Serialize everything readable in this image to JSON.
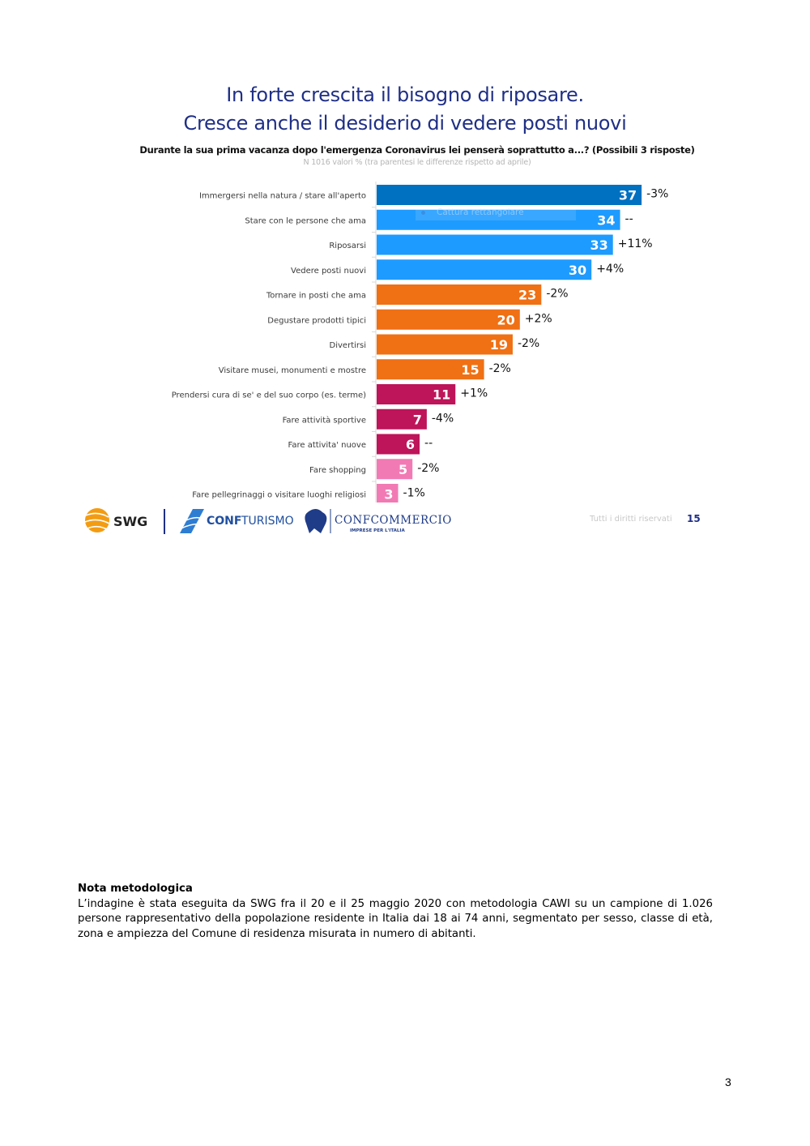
{
  "slide": {
    "title_line1": "In forte crescita il bisogno di riposare.",
    "title_line2": "Cresce anche il desiderio di vedere posti nuovi",
    "rights": "Tutti i diritti riservati",
    "slide_number": "15",
    "overlay_text": "Cattura rettangolare",
    "logos": {
      "swg": "SWG",
      "confturismo_bold": "CONF",
      "confturismo_light": "TURISMO",
      "confcommercio": "CONFCOMMERCIO",
      "confcommercio_sub": "IMPRESE PER L'ITALIA"
    }
  },
  "chart_data": {
    "type": "bar",
    "orientation": "horizontal",
    "title": "Durante la sua prima vacanza dopo l'emergenza Coronavirus lei penserà soprattutto a...? (Possibili 3 risposte)",
    "subtitle": "N   1016 valori % (tra parentesi le differenze rispetto ad aprile)",
    "xlabel": "",
    "ylabel": "",
    "xlim": [
      0,
      40
    ],
    "grid": false,
    "categories": [
      "Immergersi nella natura / stare all'aperto",
      "Stare con le persone che ama",
      "Riposarsi",
      "Vedere posti nuovi",
      "Tornare in posti che ama",
      "Degustare prodotti tipici",
      "Divertirsi",
      "Visitare musei, monumenti e mostre",
      "Prendersi cura di se' e del suo corpo (es. terme)",
      "Fare attività sportive",
      "Fare attivita' nuove",
      "Fare shopping",
      "Fare pellegrinaggi o visitare luoghi religiosi"
    ],
    "values": [
      37,
      34,
      33,
      30,
      23,
      20,
      19,
      15,
      11,
      7,
      6,
      5,
      3
    ],
    "value_labels": [
      "37",
      "34",
      "33",
      "30",
      "23",
      "20",
      "19",
      "15",
      "11",
      "7",
      "6",
      "5",
      "3"
    ],
    "diff_labels": [
      "-3%",
      "--",
      "+11%",
      "+4%",
      "-2%",
      "+2%",
      "-2%",
      "-2%",
      "+1%",
      "-4%",
      "--",
      "-2%",
      "-1%"
    ],
    "colors": [
      "#0070c0",
      "#1e9bff",
      "#1e9bff",
      "#1e9bff",
      "#f07014",
      "#f07014",
      "#f07014",
      "#f07014",
      "#be1459",
      "#be1459",
      "#be1459",
      "#f27ab4",
      "#f27ab4"
    ]
  },
  "methodology": {
    "heading": "Nota metodologica",
    "body": "L’indagine è stata eseguita da SWG fra il 20 e il 25 maggio 2020 con metodologia CAWI su un campione di 1.026 persone rappresentativo della popolazione residente in Italia dai 18 ai 74 anni, segmentato per sesso, classe di età, zona e ampiezza del Comune di residenza misurata in numero di abitanti."
  },
  "page_number": "3"
}
